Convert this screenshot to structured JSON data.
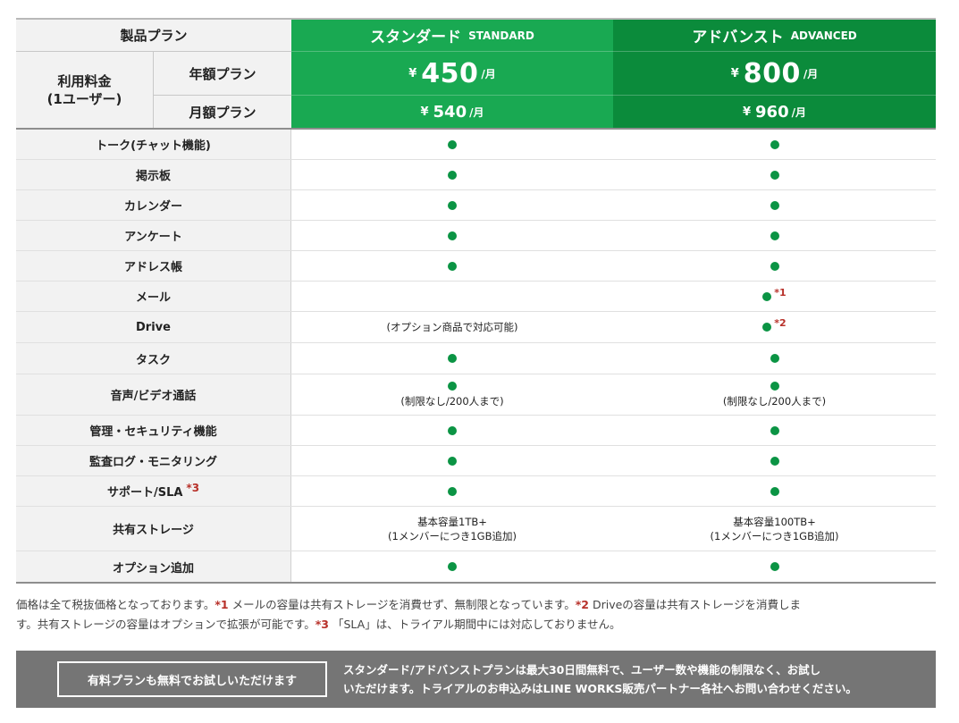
{
  "header": {
    "product_plan": "製品プラン",
    "fee_line1": "利用料金",
    "fee_line2": "(1ユーザー)",
    "annual_plan": "年額プラン",
    "monthly_plan": "月額プラン"
  },
  "plans": {
    "standard": {
      "name": "スタンダード",
      "name_en": "STANDARD",
      "currency": "¥",
      "annual_price": "450",
      "monthly_price": "540",
      "per_month": "/月",
      "color": "#19a952"
    },
    "advanced": {
      "name": "アドバンスト",
      "name_en": "ADVANCED",
      "currency": "¥",
      "annual_price": "800",
      "monthly_price": "960",
      "per_month": "/月",
      "color": "#0b8b3b"
    }
  },
  "features": [
    {
      "name": "トーク(チャット機能)",
      "standard": "dot",
      "advanced": "dot"
    },
    {
      "name": "掲示板",
      "standard": "dot",
      "advanced": "dot"
    },
    {
      "name": "カレンダー",
      "standard": "dot",
      "advanced": "dot"
    },
    {
      "name": "アンケート",
      "standard": "dot",
      "advanced": "dot"
    },
    {
      "name": "アドレス帳",
      "standard": "dot",
      "advanced": "dot"
    },
    {
      "name": "メール",
      "standard": "",
      "advanced": "dot",
      "advanced_mark": "*1"
    },
    {
      "name": "Drive",
      "standard_text": "(オプション商品で対応可能)",
      "advanced": "dot",
      "advanced_mark": "*2"
    },
    {
      "name": "タスク",
      "standard": "dot",
      "advanced": "dot"
    },
    {
      "name": "音声/ビデオ通話",
      "standard": "dot",
      "standard_text": "(制限なし/200人まで)",
      "advanced": "dot",
      "advanced_text": "(制限なし/200人まで)"
    },
    {
      "name": "管理・セキュリティ機能",
      "standard": "dot",
      "advanced": "dot"
    },
    {
      "name": "監査ログ・モニタリング",
      "standard": "dot",
      "advanced": "dot"
    },
    {
      "name": "サポート/SLA",
      "name_mark": "*3",
      "standard": "dot",
      "advanced": "dot"
    },
    {
      "name": "共有ストレージ",
      "standard_line1": "基本容量1TB+",
      "standard_line2": "(1メンバーにつき1GB追加)",
      "advanced_line1": "基本容量100TB+",
      "advanced_line2": "(1メンバーにつき1GB追加)"
    },
    {
      "name": "オプション追加",
      "standard": "dot",
      "advanced": "dot"
    }
  ],
  "notes": {
    "line1_a": "価格は全て税抜価格となっております。",
    "mark1": "*1",
    "line1_b": "メールの容量は共有ストレージを消費せず、無制限となっています。",
    "mark2": "*2",
    "line1_c": "Driveの容量は共有ストレージを消費しま",
    "line2_a": "す。共有ストレージの容量はオプションで拡張が可能です。",
    "mark3": "*3",
    "line2_b": "「SLA」は、トライアル期間中には対応しておりません。"
  },
  "banner": {
    "button": "有料プランも無料でお試しいただけます",
    "text_line1": "スタンダード/アドバンストプランは最大30日間無料で、ユーザー数や機能の制限なく、お試し",
    "text_line2": "いただけます。トライアルのお申込みはLINE WORKS販売パートナー各社へお問い合わせください。"
  },
  "colors": {
    "dot": "#0b9444",
    "note_mark": "#b8312a",
    "banner_bg": "#757575"
  }
}
